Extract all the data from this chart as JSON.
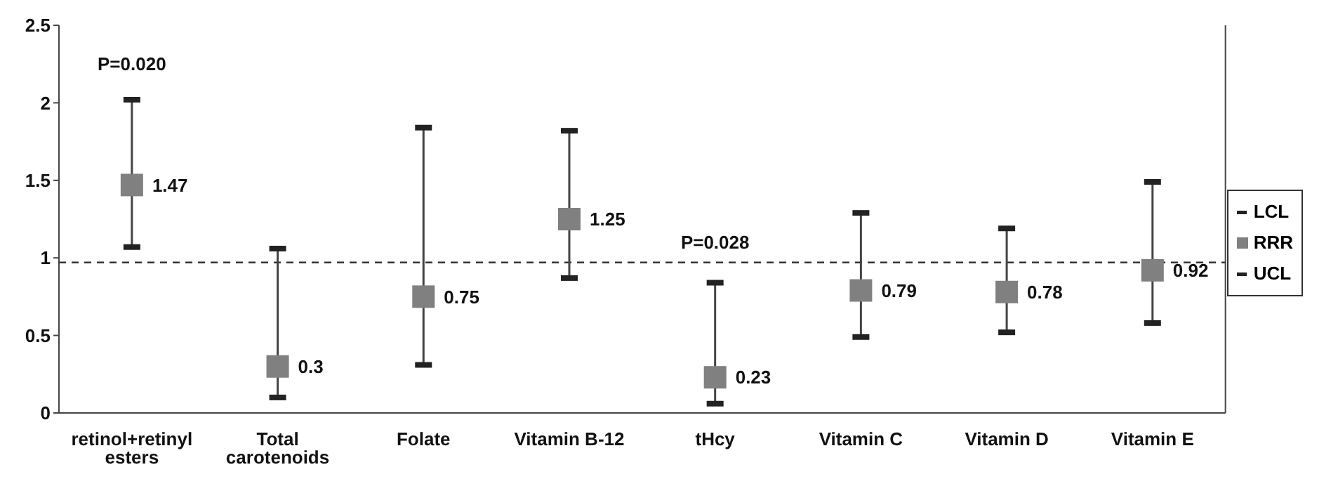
{
  "chart_data": {
    "type": "scatter",
    "categories": [
      "retinol+retinyl esters",
      "Total carotenoids",
      "Folate",
      "Vitamin B-12",
      "tHcy",
      "Vitamin C",
      "Vitamin D",
      "Vitamin E"
    ],
    "series": [
      {
        "name": "LCL",
        "color": "#222222",
        "values": [
          1.07,
          0.1,
          0.31,
          0.87,
          0.06,
          0.49,
          0.52,
          0.58
        ]
      },
      {
        "name": "RRR",
        "color": "#808080",
        "marker": "square",
        "data_labels": true,
        "values": [
          1.47,
          0.3,
          0.75,
          1.25,
          0.23,
          0.79,
          0.78,
          0.92
        ]
      },
      {
        "name": "UCL",
        "color": "#222222",
        "values": [
          2.02,
          1.06,
          1.84,
          1.82,
          0.84,
          1.29,
          1.19,
          1.49
        ]
      }
    ],
    "ylim": [
      0,
      2.5
    ],
    "yticks": [
      0,
      0.5,
      1,
      1.5,
      2,
      2.5
    ],
    "grid": false,
    "legend": "right",
    "ref_lines": [
      {
        "axis": "y",
        "value": 0.97,
        "line_style": "dashed",
        "color": "#333333"
      }
    ],
    "annotations": [
      "P=0.020",
      "P=0.028"
    ]
  }
}
